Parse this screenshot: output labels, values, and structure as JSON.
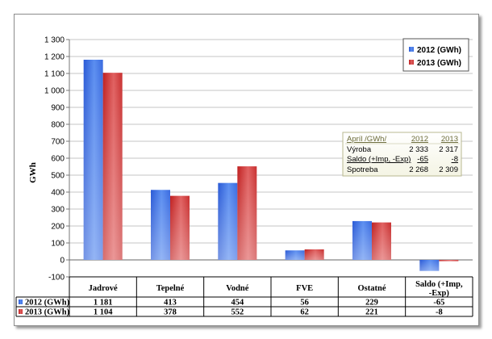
{
  "chart_data": {
    "type": "bar",
    "ylabel": "GWh",
    "ylim": [
      -100,
      1300
    ],
    "yticks": [
      "-100",
      "0",
      "100",
      "200",
      "300",
      "400",
      "500",
      "600",
      "700",
      "800",
      "900",
      "1 000",
      "1 100",
      "1 200",
      "1 300"
    ],
    "categories": [
      "Jadrové",
      "Tepelné",
      "Vodné",
      "FVE",
      "Ostatné",
      "Saldo (+Imp, -Exp)"
    ],
    "series": [
      {
        "name": "2012 (GWh)",
        "values": [
          1181,
          413,
          454,
          56,
          229,
          -65
        ],
        "labels": [
          "1 181",
          "413",
          "454",
          "56",
          "229",
          "-65"
        ],
        "color": "#3b6fe0"
      },
      {
        "name": "2013 (GWh)",
        "values": [
          1104,
          378,
          552,
          62,
          221,
          -8
        ],
        "labels": [
          "1 104",
          "378",
          "552",
          "62",
          "221",
          "-8"
        ],
        "color": "#d23a3a"
      }
    ],
    "grid": true,
    "legend": "top-right",
    "inset_table": {
      "header": [
        "Apríl /GWh/",
        "2012",
        "2013"
      ],
      "rows": [
        [
          "Výroba",
          "2 333",
          "2 317"
        ],
        [
          "Saldo (+Imp, -Exp)",
          "-65",
          "-8"
        ],
        [
          "Spotreba",
          "2 268",
          "2 309"
        ]
      ]
    }
  }
}
